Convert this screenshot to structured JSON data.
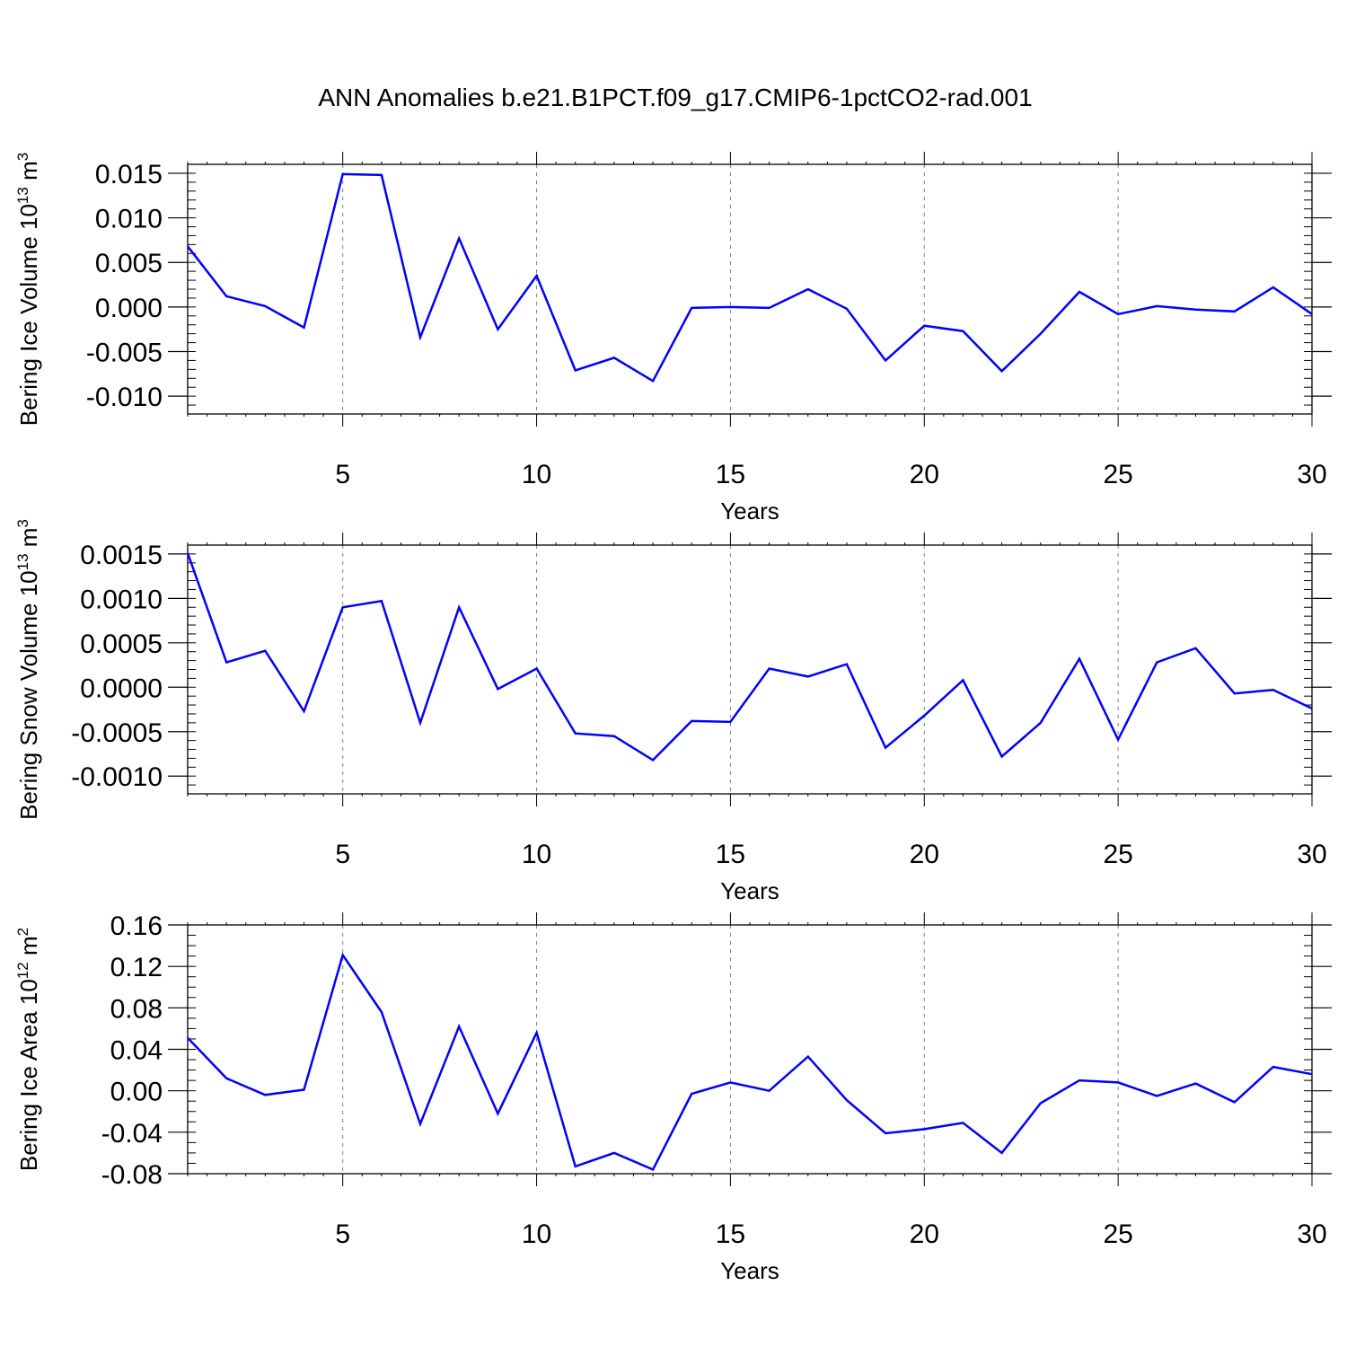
{
  "title": "ANN Anomalies b.e21.B1PCT.f09_g17.CMIP6-1pctCO2-rad.001",
  "colors": {
    "line": "#0000ff",
    "axis": "#000000",
    "grid": "#808080"
  },
  "chart_data": [
    {
      "type": "line",
      "ylabel": "Bering Ice Volume 10",
      "ylabel_exp": "13",
      "ylabel_unit": "m",
      "ylabel_unit_exp": "3",
      "xlabel": "Years",
      "xlim": [
        1,
        30
      ],
      "ylim": [
        -0.012,
        0.016
      ],
      "x_ticks": [
        5,
        10,
        15,
        20,
        25,
        30
      ],
      "y_ticks": [
        -0.01,
        -0.005,
        0.0,
        0.005,
        0.01,
        0.015
      ],
      "y_tick_labels": [
        "-0.010",
        "-0.005",
        "0.000",
        "0.005",
        "0.010",
        "0.015"
      ],
      "y_minor_step": 0.001,
      "grid": "vertical dashed at major x ticks",
      "x": [
        1,
        2,
        3,
        4,
        5,
        6,
        7,
        8,
        9,
        10,
        11,
        12,
        13,
        14,
        15,
        16,
        17,
        18,
        19,
        20,
        21,
        22,
        23,
        24,
        25,
        26,
        27,
        28,
        29,
        30
      ],
      "values": [
        0.0068,
        0.0012,
        0.0001,
        -0.0023,
        0.0149,
        0.0148,
        -0.0034,
        0.0077,
        -0.0025,
        0.0035,
        -0.0071,
        -0.0057,
        -0.0083,
        -0.0001,
        0.0,
        -0.0001,
        0.002,
        -0.0002,
        -0.006,
        -0.0021,
        -0.0027,
        -0.0072,
        -0.003,
        0.0017,
        -0.0008,
        0.0001,
        -0.0003,
        -0.0005,
        0.0022,
        -0.0008
      ]
    },
    {
      "type": "line",
      "ylabel": "Bering Snow Volume 10",
      "ylabel_exp": "13",
      "ylabel_unit": "m",
      "ylabel_unit_exp": "3",
      "xlabel": "Years",
      "xlim": [
        1,
        30
      ],
      "ylim": [
        -0.0012,
        0.0016
      ],
      "x_ticks": [
        5,
        10,
        15,
        20,
        25,
        30
      ],
      "y_ticks": [
        -0.001,
        -0.0005,
        0.0,
        0.0005,
        0.001,
        0.0015
      ],
      "y_tick_labels": [
        "-0.0010",
        "-0.0005",
        "0.0000",
        "0.0005",
        "0.0010",
        "0.0015"
      ],
      "y_minor_step": 0.0001,
      "grid": "vertical dashed at major x ticks",
      "x": [
        1,
        2,
        3,
        4,
        5,
        6,
        7,
        8,
        9,
        10,
        11,
        12,
        13,
        14,
        15,
        16,
        17,
        18,
        19,
        20,
        21,
        22,
        23,
        24,
        25,
        26,
        27,
        28,
        29,
        30
      ],
      "values": [
        0.00151,
        0.00028,
        0.00041,
        -0.00027,
        0.0009,
        0.00097,
        -0.0004,
        0.0009,
        -2e-05,
        0.00021,
        -0.00052,
        -0.00055,
        -0.00082,
        -0.00038,
        -0.00039,
        0.00021,
        0.00012,
        0.00026,
        -0.00068,
        -0.00032,
        8e-05,
        -0.00078,
        -0.0004,
        0.00032,
        -0.00059,
        0.00028,
        0.00044,
        -7e-05,
        -3e-05,
        -0.00024
      ]
    },
    {
      "type": "line",
      "ylabel": "Bering Ice Area 10",
      "ylabel_exp": "12",
      "ylabel_unit": "m",
      "ylabel_unit_exp": "2",
      "xlabel": "Years",
      "xlim": [
        1,
        30
      ],
      "ylim": [
        -0.08,
        0.16
      ],
      "x_ticks": [
        5,
        10,
        15,
        20,
        25,
        30
      ],
      "y_ticks": [
        -0.08,
        -0.04,
        0.0,
        0.04,
        0.08,
        0.12,
        0.16
      ],
      "y_tick_labels": [
        "-0.08",
        "-0.04",
        "0.00",
        "0.04",
        "0.08",
        "0.12",
        "0.16"
      ],
      "y_minor_step": 0.01,
      "grid": "vertical dashed at major x ticks",
      "x": [
        1,
        2,
        3,
        4,
        5,
        6,
        7,
        8,
        9,
        10,
        11,
        12,
        13,
        14,
        15,
        16,
        17,
        18,
        19,
        20,
        21,
        22,
        23,
        24,
        25,
        26,
        27,
        28,
        29,
        30
      ],
      "values": [
        0.051,
        0.012,
        -0.004,
        0.001,
        0.131,
        0.076,
        -0.032,
        0.062,
        -0.022,
        0.056,
        -0.073,
        -0.06,
        -0.076,
        -0.003,
        0.008,
        0.0,
        0.033,
        -0.009,
        -0.041,
        -0.037,
        -0.031,
        -0.06,
        -0.012,
        0.01,
        0.008,
        -0.005,
        0.007,
        -0.011,
        0.023,
        0.016
      ]
    }
  ]
}
